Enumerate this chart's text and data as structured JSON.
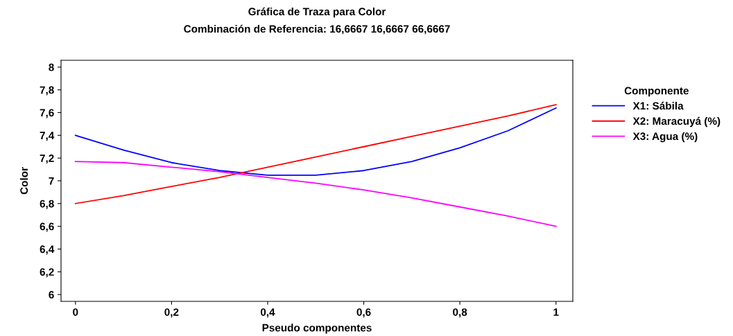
{
  "chart_data": {
    "type": "line",
    "title": "Gráfica de Traza para Color",
    "subtitle": "Combinación de Referencia: 16,6667 16,6667 66,6667",
    "xlabel": "Pseudo componentes",
    "ylabel": "Color",
    "legend_title": "Componente",
    "legend": "right",
    "grid": false,
    "marker": "none",
    "line_style": "solid",
    "x": [
      0,
      0.1,
      0.2,
      0.3,
      0.4,
      0.5,
      0.6,
      0.7,
      0.8,
      0.9,
      1
    ],
    "series": [
      {
        "name": "X1: Sábila",
        "color": "#0000ff",
        "values": [
          7.4,
          7.27,
          7.16,
          7.09,
          7.05,
          7.05,
          7.09,
          7.17,
          7.29,
          7.44,
          7.64
        ]
      },
      {
        "name": "X2: Maracuyá (%)",
        "color": "#ff0000",
        "values": [
          6.8,
          6.87,
          6.95,
          7.03,
          7.12,
          7.21,
          7.3,
          7.39,
          7.48,
          7.57,
          7.67
        ]
      },
      {
        "name": "X3: Agua (%)",
        "color": "#ff00ff",
        "values": [
          7.17,
          7.16,
          7.12,
          7.08,
          7.03,
          6.98,
          6.92,
          6.85,
          6.77,
          6.69,
          6.6
        ]
      }
    ],
    "xlim": [
      -0.03,
      1.035
    ],
    "ylim": [
      5.94,
      8.06
    ],
    "xticks": [
      0,
      {
        "value": 0.2,
        "label": "0,2"
      },
      {
        "value": 0.4,
        "label": "0,4"
      },
      {
        "value": 0.6,
        "label": "0,6"
      },
      {
        "value": 0.8,
        "label": "0,8"
      },
      1
    ],
    "yticks": [
      6,
      {
        "value": 6.2,
        "label": "6,2"
      },
      {
        "value": 6.4,
        "label": "6,4"
      },
      {
        "value": 6.6,
        "label": "6,6"
      },
      {
        "value": 6.8,
        "label": "6,8"
      },
      7,
      {
        "value": 7.2,
        "label": "7,2"
      },
      {
        "value": 7.4,
        "label": "7,4"
      },
      {
        "value": 7.6,
        "label": "7,6"
      },
      {
        "value": 7.8,
        "label": "7,8"
      },
      8
    ]
  }
}
